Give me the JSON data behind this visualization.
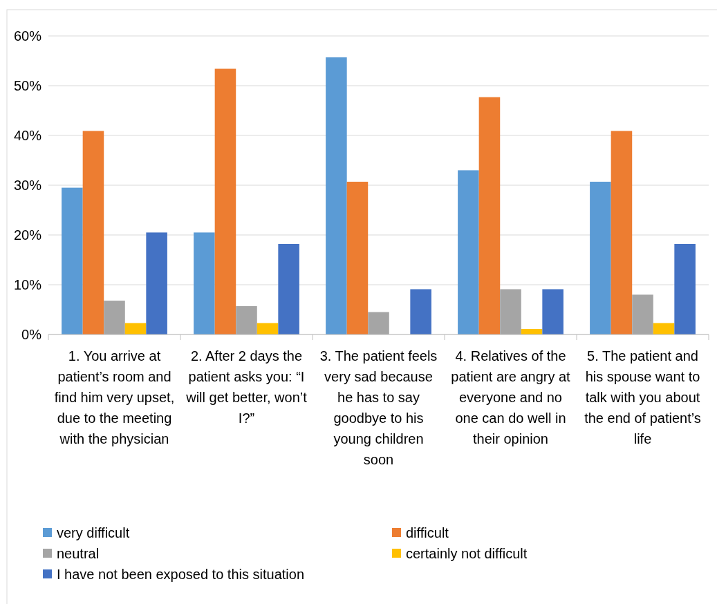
{
  "chart_data": {
    "type": "bar",
    "categories": [
      "1. You arrive at patient’s room and find him very upset, due to the meeting with the physician",
      "2. After 2 days the patient asks you: “I will get better, won’t I?”",
      "3. The patient feels very sad because he has to say goodbye to his young children soon",
      "4. Relatives of the patient are angry at everyone and no one can do well in their opinion",
      "5. The patient and his spouse want to talk with you about the end of patient’s life"
    ],
    "series": [
      {
        "name": "very difficult",
        "color": "#5b9bd5",
        "values": [
          29.5,
          20.5,
          55.7,
          33.0,
          30.7
        ]
      },
      {
        "name": "difficult",
        "color": "#ed7d31",
        "values": [
          40.9,
          53.4,
          30.7,
          47.7,
          40.9
        ]
      },
      {
        "name": "neutral",
        "color": "#a5a5a5",
        "values": [
          6.8,
          5.7,
          4.5,
          9.1,
          8.0
        ]
      },
      {
        "name": "certainly not difficult",
        "color": "#ffc000",
        "values": [
          2.3,
          2.3,
          0,
          1.1,
          2.3
        ]
      },
      {
        "name": "I have not been exposed to this situation",
        "color": "#4472c4",
        "values": [
          20.5,
          18.2,
          9.1,
          9.1,
          18.2
        ]
      }
    ],
    "ylim": [
      0,
      60
    ],
    "yticks": [
      {
        "value": 0,
        "label": "0%"
      },
      {
        "value": 10,
        "label": "10%"
      },
      {
        "value": 20,
        "label": "20%"
      },
      {
        "value": 30,
        "label": "30%"
      },
      {
        "value": 40,
        "label": "40%"
      },
      {
        "value": 50,
        "label": "50%"
      },
      {
        "value": 60,
        "label": "60%"
      }
    ],
    "grid": "y",
    "legend": "bottom"
  }
}
